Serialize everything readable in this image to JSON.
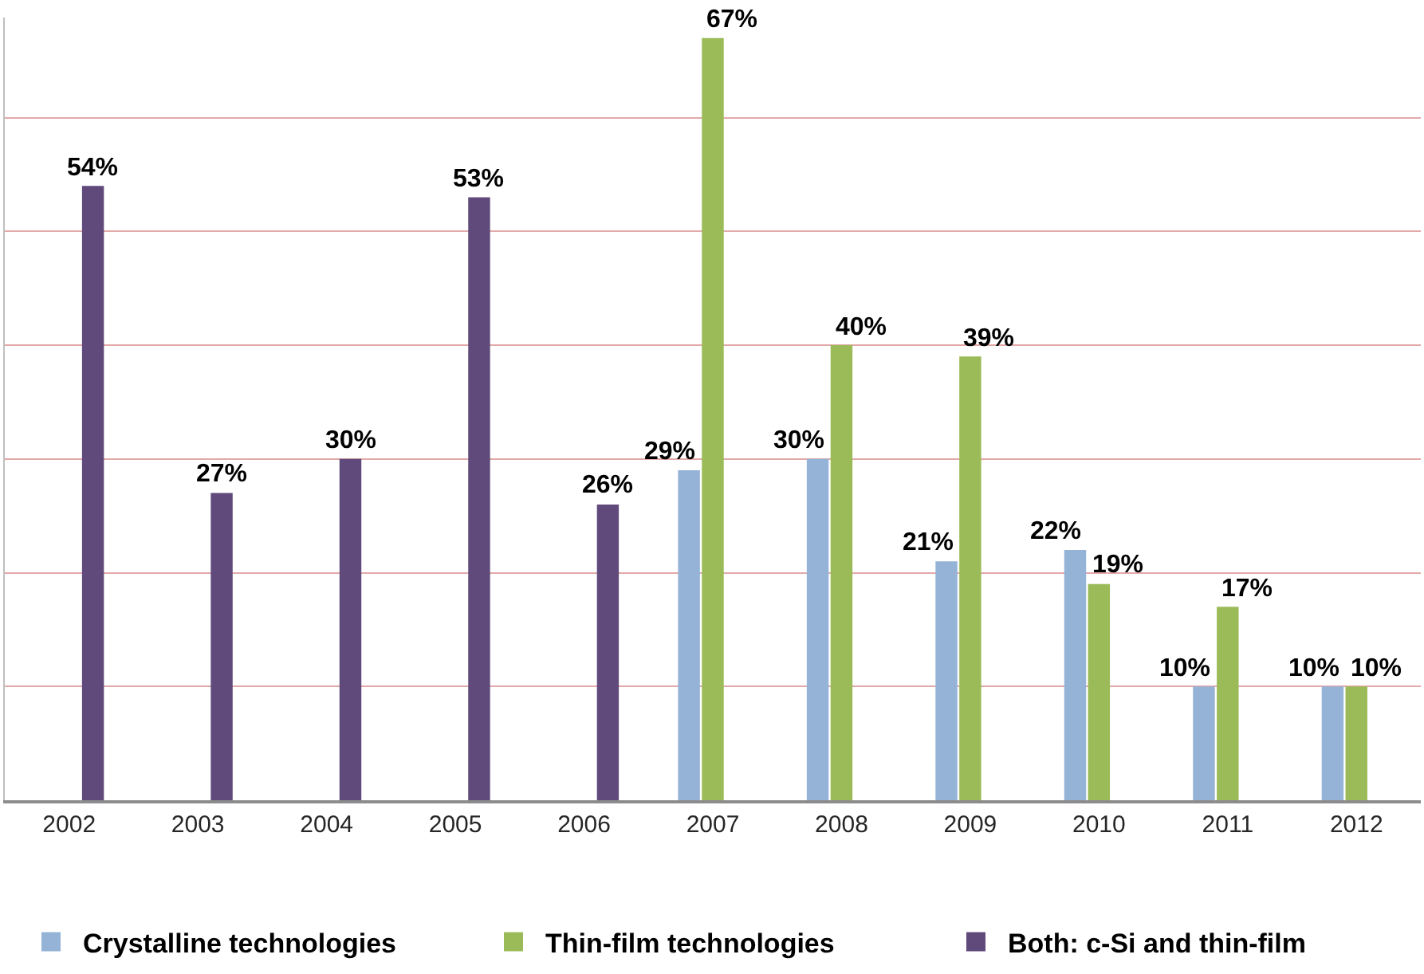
{
  "chart_data": {
    "type": "bar",
    "categories": [
      "2002",
      "2003",
      "2004",
      "2005",
      "2006",
      "2007",
      "2008",
      "2009",
      "2010",
      "2011",
      "2012"
    ],
    "series": [
      {
        "name": "Crystalline technologies",
        "color": "#95b3d7",
        "values": [
          null,
          null,
          null,
          null,
          null,
          29,
          30,
          21,
          22,
          10,
          10
        ],
        "value_labels": [
          null,
          null,
          null,
          null,
          null,
          "29%",
          "30%",
          "21%",
          "22%",
          "10%",
          "10%"
        ]
      },
      {
        "name": "Thin-film technologies",
        "color": "#9bbb59",
        "values": [
          null,
          null,
          null,
          null,
          null,
          67,
          40,
          39,
          19,
          17,
          10
        ],
        "value_labels": [
          null,
          null,
          null,
          null,
          null,
          "67%",
          "40%",
          "39%",
          "19%",
          "17%",
          "10%"
        ]
      },
      {
        "name": "Both: c-Si and thin-film",
        "color": "#604a7b",
        "values": [
          54,
          27,
          30,
          53,
          26,
          null,
          null,
          null,
          null,
          null,
          null
        ],
        "value_labels": [
          "54%",
          "27%",
          "30%",
          "53%",
          "26%",
          null,
          null,
          null,
          null,
          null,
          null
        ]
      }
    ],
    "ylim": [
      0,
      68.8
    ],
    "yticks": [
      {
        "value": 0,
        "label": null
      },
      {
        "value": 10,
        "label": null
      },
      {
        "value": 20,
        "label": null
      },
      {
        "value": 30,
        "label": null
      },
      {
        "value": 40,
        "label": null
      },
      {
        "value": 50,
        "label": null
      },
      {
        "value": 60,
        "label": null
      }
    ],
    "grid": "y",
    "legend": "bottom",
    "tick_labels": "x"
  }
}
